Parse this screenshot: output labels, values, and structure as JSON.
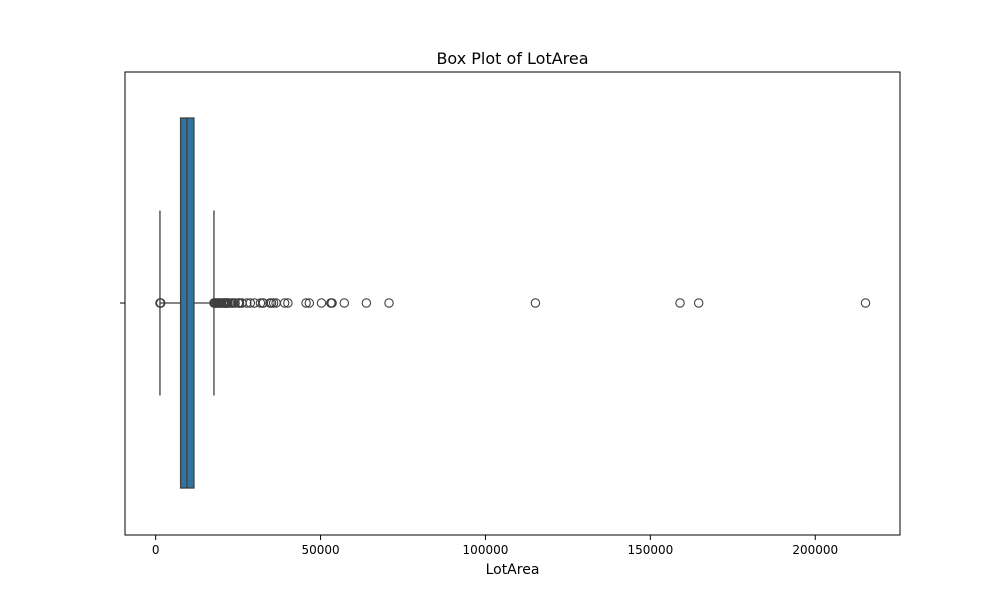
{
  "chart_data": {
    "type": "box",
    "title": "Box Plot of LotArea",
    "xlabel": "LotArea",
    "ylabel": "",
    "orientation": "horizontal",
    "xlim": [
      -9300,
      225700
    ],
    "x_ticks": [
      0,
      50000,
      100000,
      150000,
      200000
    ],
    "x_tick_labels": [
      "0",
      "50000",
      "100000",
      "150000",
      "200000"
    ],
    "grid": false,
    "legend": "none",
    "box_color": "#3274a1",
    "line_color": "#3f3f3f",
    "box": {
      "whisker_low": 1300,
      "q1": 7554,
      "median": 9478,
      "q3": 11602,
      "whisker_high": 17671
    },
    "outliers": [
      1300,
      1491,
      1477,
      1526,
      17671,
      17755,
      17920,
      18030,
      18386,
      18450,
      18800,
      19138,
      19296,
      19378,
      19690,
      19900,
      20431,
      20544,
      20781,
      20896,
      21000,
      21286,
      21384,
      21453,
      21750,
      21872,
      21930,
      22420,
      22950,
      23257,
      23595,
      24090,
      25095,
      25286,
      25419,
      26142,
      26178,
      27650,
      28698,
      29959,
      31770,
      32463,
      32668,
      34650,
      35133,
      35760,
      36500,
      39104,
      40094,
      45600,
      46589,
      50271,
      53107,
      53227,
      53504,
      57200,
      63887,
      70761,
      115149,
      159000,
      164660,
      215245
    ]
  }
}
